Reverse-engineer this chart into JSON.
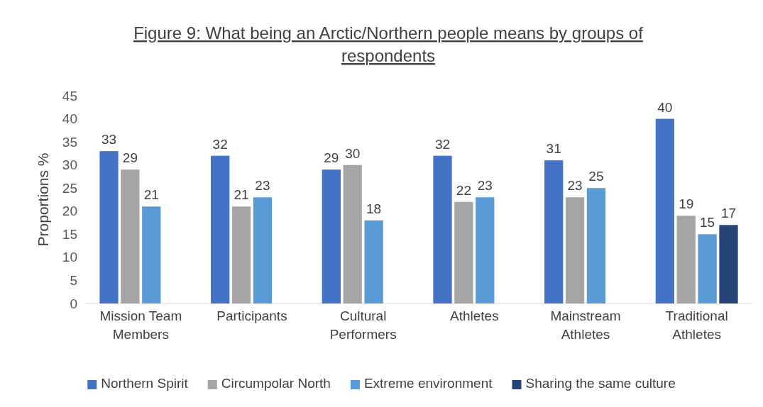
{
  "chart_data": {
    "type": "bar",
    "title": "Figure 9: What being an Arctic/Northern people means by groups of respondents",
    "ylabel": "Proportions %",
    "categories": [
      "Mission Team Members",
      "Participants",
      "Cultural Performers",
      "Athletes",
      "Mainstream Athletes",
      "Traditional Athletes"
    ],
    "series": [
      {
        "name": "Northern Spirit",
        "color": "#4472c4",
        "values": [
          33,
          32,
          29,
          32,
          31,
          40
        ]
      },
      {
        "name": "Circumpolar North",
        "color": "#a5a5a5",
        "values": [
          29,
          21,
          30,
          22,
          23,
          19
        ]
      },
      {
        "name": "Extreme environment",
        "color": "#5b9bd5",
        "values": [
          21,
          23,
          18,
          23,
          25,
          15
        ]
      },
      {
        "name": "Sharing the same culture",
        "color": "#264478",
        "values": [
          null,
          null,
          null,
          null,
          null,
          17
        ]
      }
    ],
    "ylim": [
      0,
      45
    ],
    "yticks": [
      0,
      5,
      10,
      15,
      20,
      25,
      30,
      35,
      40,
      45
    ],
    "grid": false,
    "legend": "bottom",
    "data_labels": true
  }
}
